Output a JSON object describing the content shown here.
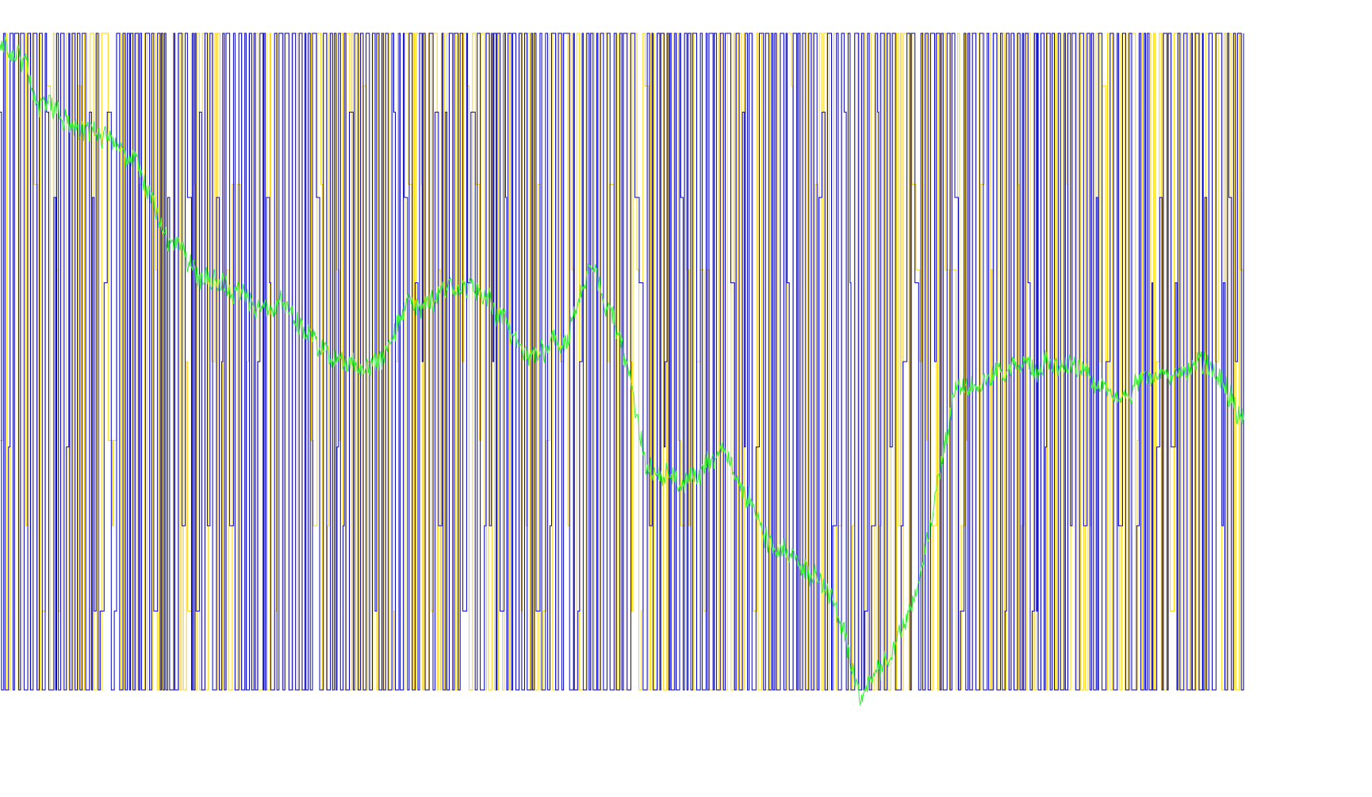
{
  "chart_data": {
    "type": "line",
    "title": "",
    "xlabel": "",
    "ylabel": "",
    "grid": false,
    "legend": "none",
    "x_range": [
      0,
      1000
    ],
    "y_range": [
      0,
      100
    ],
    "colors": {
      "yellow": "#FFD400",
      "blue": "#0000CC",
      "green": "#33EE33",
      "dark_green": "#00B000"
    },
    "square_wave_scale": [
      0,
      100
    ],
    "series": [
      {
        "kind": "square-wave",
        "color_key": "yellow",
        "period_points": 600,
        "level_choices": [
          100,
          92,
          77,
          64,
          50,
          38,
          25,
          12,
          0
        ],
        "seed": 1357
      },
      {
        "kind": "square-wave",
        "color_key": "blue",
        "period_points": 600,
        "level_choices": [
          100,
          88,
          75,
          62,
          50,
          37,
          25,
          12,
          0
        ],
        "seed": 2468
      },
      {
        "kind": "price",
        "color_key": "green",
        "anchor_x": [
          0,
          35,
          50,
          110,
          170,
          220,
          250,
          300,
          360,
          420,
          480,
          520,
          570,
          620,
          680,
          720,
          760,
          800,
          830,
          880,
          930,
          1000
        ],
        "anchor_y": [
          97,
          95,
          88,
          86,
          83,
          68,
          65,
          63,
          60,
          53,
          50,
          58,
          62,
          62,
          52,
          54,
          66,
          55,
          37,
          34,
          38,
          24
        ],
        "anchor_y_2": [
          24,
          19,
          2,
          18,
          48,
          50,
          52,
          47,
          50,
          51,
          45
        ],
        "anchor_x_2": [
          1000,
          1060,
          1110,
          1180,
          1230,
          1300,
          1380,
          1440,
          1500,
          1560,
          1600
        ]
      }
    ]
  }
}
